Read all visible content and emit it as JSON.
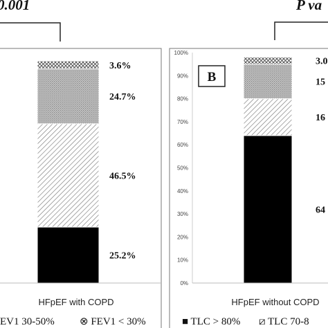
{
  "chart_data": [
    {
      "type": "bar",
      "stacked": true,
      "panel_label": "",
      "pvalue_label": "0.001",
      "categories": [
        "HFpEF with COPD"
      ],
      "series": [
        {
          "name": "",
          "values": [
            25.2
          ],
          "label": "25.2%",
          "pattern": "solid-black"
        },
        {
          "name": "",
          "values": [
            46.5
          ],
          "label": "46.5%",
          "pattern": "diagonal-hatch"
        },
        {
          "name": "",
          "values": [
            24.7
          ],
          "label": "24.7%",
          "pattern": "dense-dots"
        },
        {
          "name": "",
          "values": [
            3.6
          ],
          "label": "3.6%",
          "pattern": "cross-hatch"
        }
      ],
      "legend": [
        "EV1 30-50%",
        "⊗ FEV1 < 30%"
      ],
      "legend_placement": "bottom",
      "ylim": [
        0,
        100
      ]
    },
    {
      "type": "bar",
      "stacked": true,
      "panel_label": "B",
      "pvalue_label": "P va",
      "categories": [
        "HFpEF without COPD"
      ],
      "yticks": [
        "0%",
        "10%",
        "20%",
        "30%",
        "40%",
        "50%",
        "60%",
        "70%",
        "80%",
        "90%",
        "100%"
      ],
      "series": [
        {
          "name": "TLC > 80%",
          "values": [
            64
          ],
          "label": "64",
          "pattern": "solid-black"
        },
        {
          "name": "TLC 70-8",
          "values": [
            16
          ],
          "label": "16",
          "pattern": "diagonal-hatch"
        },
        {
          "name": "",
          "values": [
            15
          ],
          "label": "15",
          "pattern": "dense-dots"
        },
        {
          "name": "",
          "values": [
            3
          ],
          "label": "3.0",
          "pattern": "cross-hatch"
        }
      ],
      "legend": [
        "■ TLC > 80%",
        "⧄ TLC 70-8"
      ],
      "legend_placement": "bottom",
      "ylim": [
        0,
        100
      ],
      "grid": false
    }
  ]
}
